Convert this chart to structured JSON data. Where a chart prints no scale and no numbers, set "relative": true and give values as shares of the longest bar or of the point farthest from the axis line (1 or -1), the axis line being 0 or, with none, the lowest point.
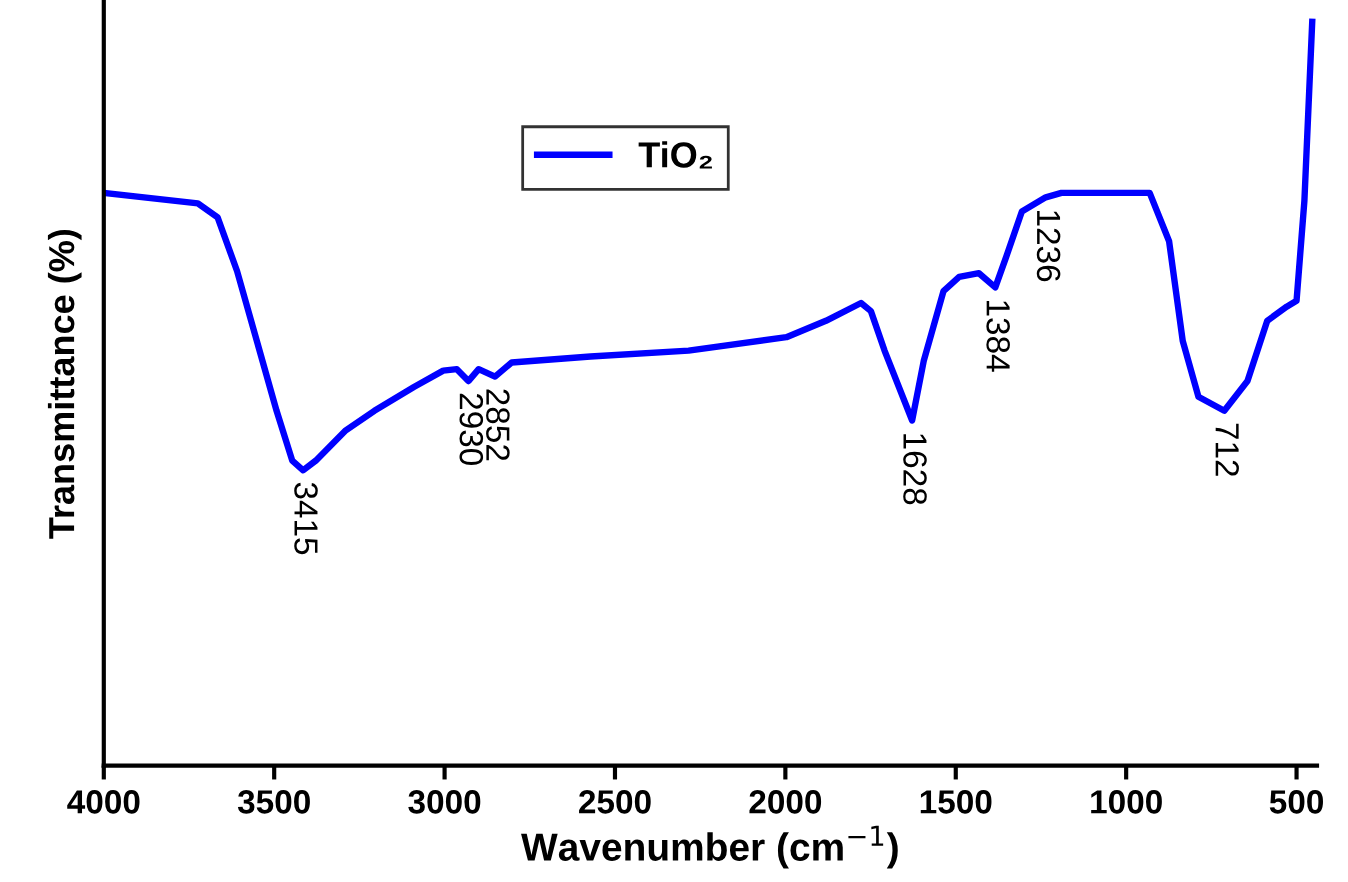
{
  "chart_data": {
    "type": "line",
    "relative": true,
    "xlabel": "Wavenumber (cm$^{−1}$)",
    "ylabel": "Transmittance (%)",
    "xlim": [
      4000,
      440
    ],
    "xticks": [
      4000,
      3500,
      3000,
      2500,
      2000,
      1500,
      1000,
      500
    ],
    "tick_labels": "x",
    "grid": false,
    "legend": "top",
    "marker": "none",
    "line_style": "solid",
    "x": [
      4000,
      3724,
      3666,
      3609,
      3551,
      3493,
      3447,
      3415,
      3378,
      3292,
      3206,
      3090,
      3004,
      2964,
      2930,
      2900,
      2852,
      2803,
      2572,
      2284,
      1997,
      1881,
      1778,
      1749,
      1709,
      1628,
      1594,
      1536,
      1490,
      1432,
      1384,
      1352,
      1306,
      1236,
      1190,
      931,
      874,
      834,
      788,
      712,
      644,
      586,
      529,
      500,
      477,
      454
    ],
    "series": [
      {
        "name": "TiO₂",
        "color": "#0000ff",
        "values": [
          0.77,
          0.756,
          0.737,
          0.665,
          0.571,
          0.477,
          0.41,
          0.397,
          0.41,
          0.45,
          0.477,
          0.509,
          0.531,
          0.533,
          0.517,
          0.533,
          0.523,
          0.542,
          0.55,
          0.558,
          0.576,
          0.598,
          0.622,
          0.611,
          0.558,
          0.464,
          0.544,
          0.638,
          0.657,
          0.662,
          0.643,
          0.684,
          0.745,
          0.764,
          0.77,
          0.77,
          0.705,
          0.571,
          0.496,
          0.477,
          0.517,
          0.598,
          0.617,
          0.625,
          0.759,
          1.0
        ]
      }
    ],
    "annotations": [
      {
        "text": "3415",
        "x": 3415,
        "y": 0.397
      },
      {
        "text": "2930",
        "x": 2930,
        "y": 0.517
      },
      {
        "text": "2852",
        "x": 2852,
        "y": 0.523
      },
      {
        "text": "1628",
        "x": 1628,
        "y": 0.464
      },
      {
        "text": "1384",
        "x": 1384,
        "y": 0.643
      },
      {
        "text": "1236",
        "x": 1236,
        "y": 0.764
      },
      {
        "text": "712",
        "x": 712,
        "y": 0.477
      }
    ]
  }
}
